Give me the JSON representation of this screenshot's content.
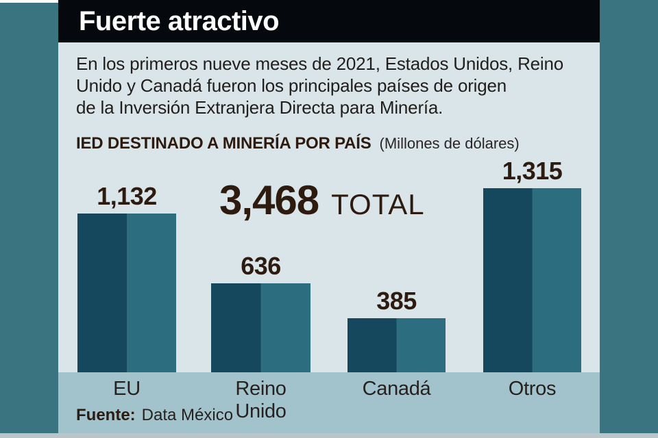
{
  "header": {
    "title": "Fuerte atractivo"
  },
  "intro": {
    "lines": [
      "En los primeros nueve meses de 2021, Estados Unidos, Reino",
      "Unido y Canadá fueron los principales países de origen",
      "de la Inversión Extranjera Directa para Minería."
    ]
  },
  "chart_data": {
    "type": "bar",
    "title": "IED DESTINADO A MINERÍA POR PAÍS",
    "units_label": "(Millones de dólares)",
    "categories": [
      "EU",
      "Reino Unido",
      "Canadá",
      "Otros"
    ],
    "values": [
      1132,
      636,
      385,
      1315
    ],
    "value_labels": [
      "1,132",
      "636",
      "385",
      "1,315"
    ],
    "total": {
      "value": "3,468",
      "label": "TOTAL"
    },
    "ylim": [
      0,
      1315
    ],
    "grid": false,
    "legend": "none",
    "bar_colors": {
      "left_half": "#15485C",
      "right_half": "#2C6D80"
    }
  },
  "footer": {
    "source_label": "Fuente:",
    "source_value": "Data México"
  },
  "colors": {
    "frame_teal": "#3A7480",
    "header_bg": "#05080D",
    "content_bg": "#D9E5E9",
    "axis_strip_bg": "#A2C3CC",
    "bottom_edge": "#BAC5C9",
    "accent_text": "#2E1B10",
    "body_text": "#221E1B",
    "headline_text": "#FFFFFF"
  }
}
